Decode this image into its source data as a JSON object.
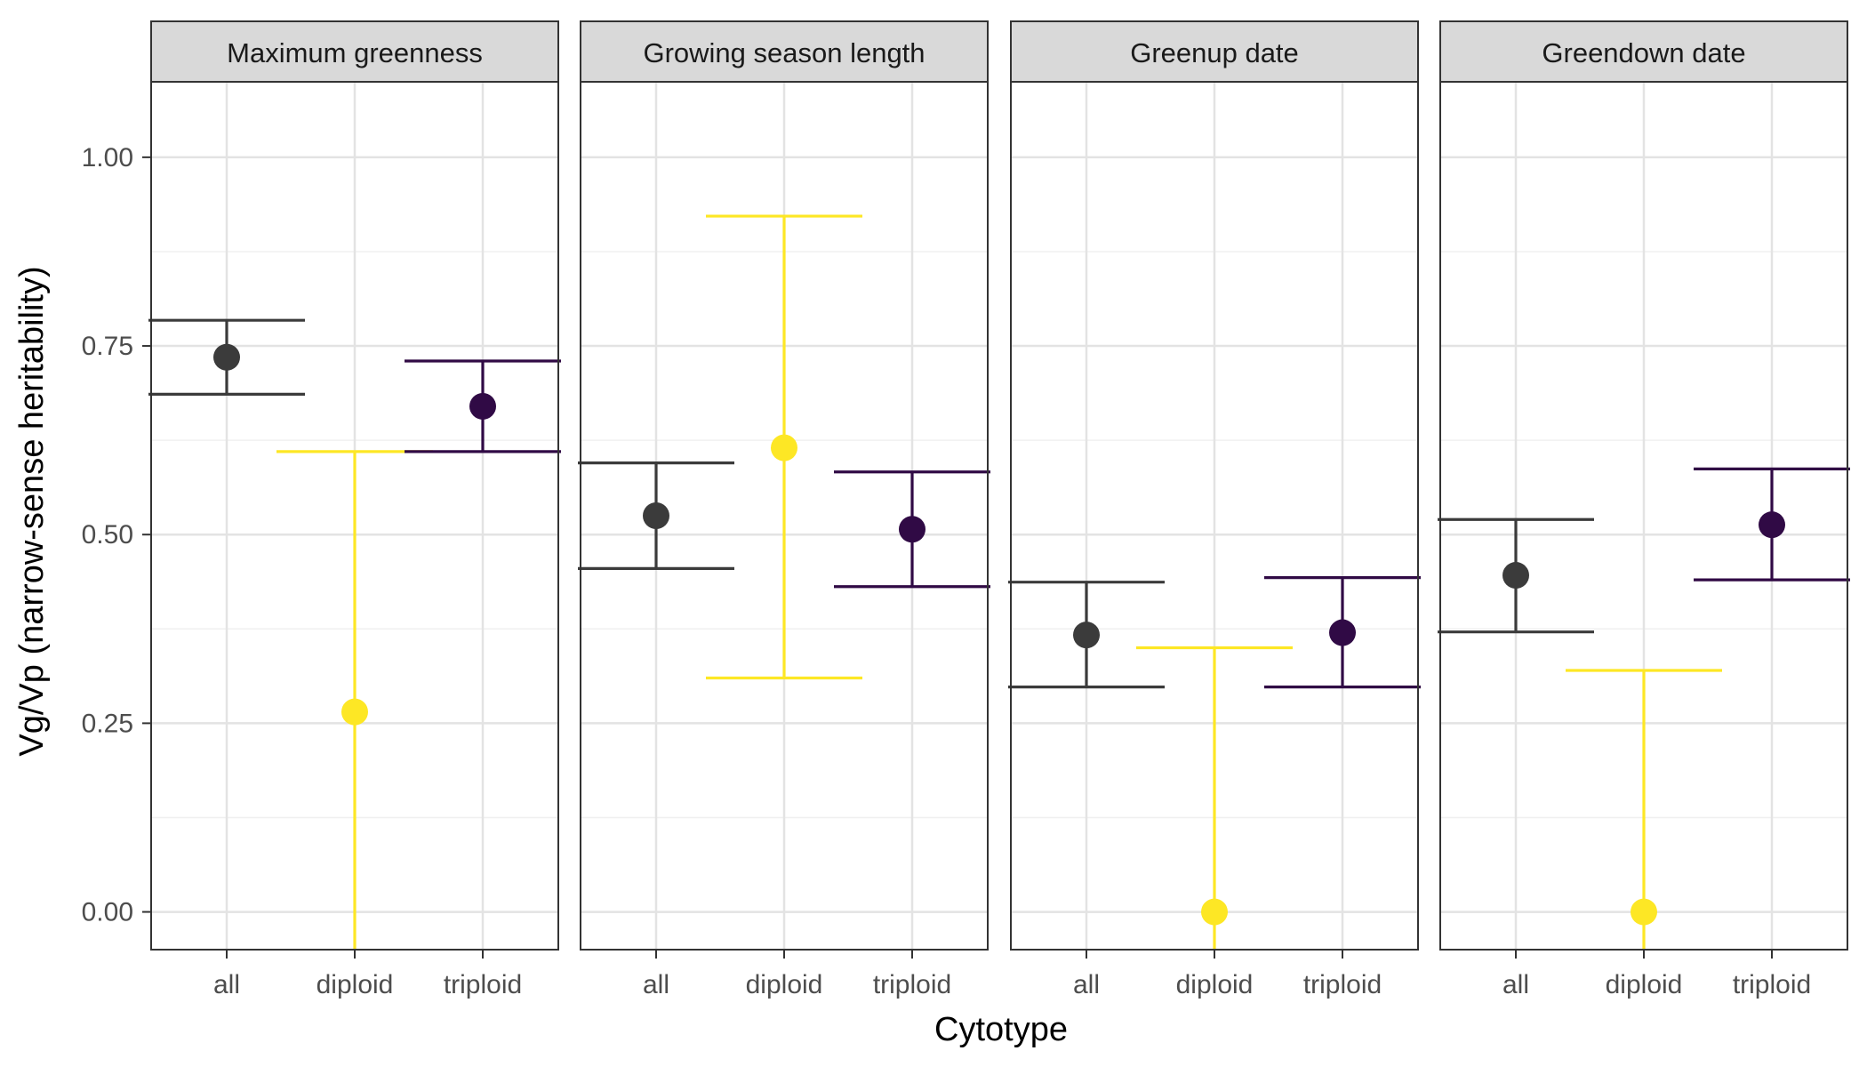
{
  "chart_data": {
    "type": "scatter",
    "subtype": "faceted point-range with error bars",
    "xlabel": "Cytotype",
    "ylabel": "Vg/Vp (narrow-sense heritability)",
    "categories": [
      "all",
      "diploid",
      "triploid"
    ],
    "ylim": [
      -0.05,
      1.1
    ],
    "yticks": [
      0.0,
      0.25,
      0.5,
      0.75,
      1.0
    ],
    "ytick_labels": [
      "0.00",
      "0.25",
      "0.50",
      "0.75",
      "1.00"
    ],
    "grid": true,
    "legend": "none",
    "colors": {
      "all": "#3b3b3b",
      "diploid": "#fde725",
      "triploid": "#300a45"
    },
    "panels": [
      {
        "title": "Maximum greenness",
        "points": [
          {
            "x": "all",
            "y": 0.735,
            "lower": 0.686,
            "upper": 0.784
          },
          {
            "x": "diploid",
            "y": 0.265,
            "lower": -0.06,
            "upper": 0.61
          },
          {
            "x": "triploid",
            "y": 0.67,
            "lower": 0.61,
            "upper": 0.73
          }
        ]
      },
      {
        "title": "Growing season length",
        "points": [
          {
            "x": "all",
            "y": 0.525,
            "lower": 0.455,
            "upper": 0.595
          },
          {
            "x": "diploid",
            "y": 0.615,
            "lower": 0.31,
            "upper": 0.922
          },
          {
            "x": "triploid",
            "y": 0.507,
            "lower": 0.431,
            "upper": 0.583
          }
        ]
      },
      {
        "title": "Greenup date",
        "points": [
          {
            "x": "all",
            "y": 0.367,
            "lower": 0.298,
            "upper": 0.437
          },
          {
            "x": "diploid",
            "y": 0.0,
            "lower": -0.06,
            "upper": 0.35
          },
          {
            "x": "triploid",
            "y": 0.37,
            "lower": 0.298,
            "upper": 0.443
          }
        ]
      },
      {
        "title": "Greendown date",
        "points": [
          {
            "x": "all",
            "y": 0.446,
            "lower": 0.371,
            "upper": 0.52
          },
          {
            "x": "diploid",
            "y": 0.0,
            "lower": -0.06,
            "upper": 0.32
          },
          {
            "x": "triploid",
            "y": 0.513,
            "lower": 0.44,
            "upper": 0.587
          }
        ]
      }
    ]
  }
}
